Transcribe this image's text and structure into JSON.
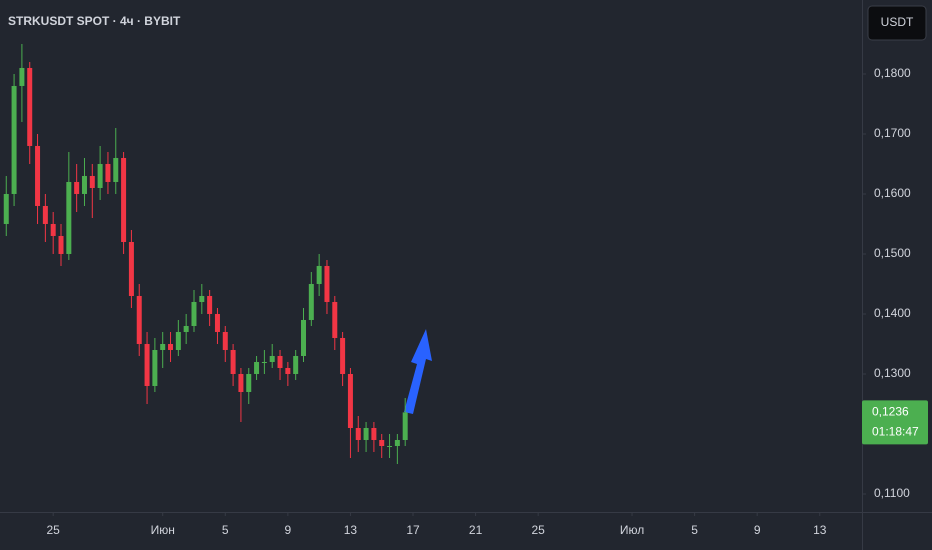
{
  "chart_data": {
    "type": "candlestick",
    "title": "STRKUSDT SPOT · 4ч · BYBIT",
    "currency_button": "USDT",
    "up_color": "#4caf50",
    "down_color": "#f23645",
    "grid": false,
    "x": [
      22,
      22.5,
      23,
      23.5,
      24,
      24.5,
      25,
      25.5,
      26,
      26.5,
      27,
      27.5,
      28,
      28.5,
      29,
      29.5,
      30,
      30.5,
      31,
      31.5,
      32,
      32.5,
      33,
      33.5,
      34,
      34.5,
      35,
      35.5,
      36,
      36.5,
      37,
      37.5,
      38,
      38.5,
      39,
      39.5,
      40,
      40.5,
      41,
      41.5,
      42,
      42.5,
      43,
      43.5,
      44,
      44.5,
      45,
      45.5,
      46,
      46.5,
      47,
      47.5
    ],
    "open": [
      0.155,
      0.16,
      0.178,
      0.181,
      0.168,
      0.158,
      0.155,
      0.153,
      0.15,
      0.162,
      0.16,
      0.163,
      0.161,
      0.165,
      0.162,
      0.166,
      0.152,
      0.143,
      0.135,
      0.128,
      0.134,
      0.135,
      0.134,
      0.137,
      0.138,
      0.142,
      0.143,
      0.14,
      0.137,
      0.134,
      0.13,
      0.127,
      0.13,
      0.132,
      0.132,
      0.133,
      0.131,
      0.13,
      0.133,
      0.139,
      0.145,
      0.148,
      0.142,
      0.136,
      0.13,
      0.121,
      0.119,
      0.121,
      0.119,
      0.118,
      0.118,
      0.119
    ],
    "high": [
      0.163,
      0.18,
      0.185,
      0.182,
      0.17,
      0.16,
      0.157,
      0.155,
      0.167,
      0.165,
      0.166,
      0.165,
      0.168,
      0.167,
      0.171,
      0.167,
      0.154,
      0.145,
      0.137,
      0.136,
      0.137,
      0.137,
      0.139,
      0.14,
      0.144,
      0.145,
      0.144,
      0.141,
      0.138,
      0.135,
      0.131,
      0.131,
      0.133,
      0.134,
      0.135,
      0.134,
      0.132,
      0.134,
      0.141,
      0.147,
      0.15,
      0.149,
      0.143,
      0.137,
      0.131,
      0.123,
      0.122,
      0.122,
      0.12,
      0.12,
      0.12,
      0.126
    ],
    "low": [
      0.153,
      0.158,
      0.172,
      0.165,
      0.155,
      0.152,
      0.15,
      0.148,
      0.149,
      0.157,
      0.158,
      0.156,
      0.159,
      0.16,
      0.16,
      0.15,
      0.141,
      0.133,
      0.125,
      0.127,
      0.131,
      0.132,
      0.133,
      0.135,
      0.137,
      0.14,
      0.138,
      0.135,
      0.132,
      0.128,
      0.122,
      0.125,
      0.129,
      0.13,
      0.131,
      0.129,
      0.128,
      0.129,
      0.132,
      0.138,
      0.143,
      0.14,
      0.134,
      0.128,
      0.116,
      0.117,
      0.117,
      0.117,
      0.116,
      0.116,
      0.115,
      0.118
    ],
    "close": [
      0.16,
      0.178,
      0.181,
      0.168,
      0.158,
      0.155,
      0.153,
      0.15,
      0.162,
      0.16,
      0.163,
      0.161,
      0.165,
      0.162,
      0.166,
      0.152,
      0.143,
      0.135,
      0.128,
      0.134,
      0.135,
      0.134,
      0.137,
      0.138,
      0.142,
      0.143,
      0.14,
      0.137,
      0.134,
      0.13,
      0.127,
      0.13,
      0.132,
      0.132,
      0.133,
      0.131,
      0.13,
      0.133,
      0.139,
      0.145,
      0.148,
      0.142,
      0.136,
      0.13,
      0.121,
      0.119,
      0.121,
      0.119,
      0.118,
      0.118,
      0.119,
      0.1236
    ],
    "xlim": [
      21.6,
      76.7
    ],
    "xticks": [
      {
        "value": 25,
        "label": "25"
      },
      {
        "value": 32,
        "label": "Июн"
      },
      {
        "value": 36,
        "label": "5"
      },
      {
        "value": 40,
        "label": "9"
      },
      {
        "value": 44,
        "label": "13"
      },
      {
        "value": 48,
        "label": "17"
      },
      {
        "value": 52,
        "label": "21"
      },
      {
        "value": 56,
        "label": "25"
      },
      {
        "value": 62,
        "label": "Июл"
      },
      {
        "value": 66,
        "label": "5"
      },
      {
        "value": 70,
        "label": "9"
      },
      {
        "value": 74,
        "label": "13"
      }
    ],
    "ylim": [
      0.107,
      0.19233
    ],
    "yticks": [
      {
        "value": 0.11,
        "label": "0,1100"
      },
      {
        "value": 0.13,
        "label": "0,1300"
      },
      {
        "value": 0.14,
        "label": "0,1400"
      },
      {
        "value": 0.15,
        "label": "0,1500"
      },
      {
        "value": 0.16,
        "label": "0,1600"
      },
      {
        "value": 0.17,
        "label": "0,1700"
      },
      {
        "value": 0.18,
        "label": "0,1800"
      }
    ],
    "last_price": {
      "value": 0.1236,
      "label": "0,1236"
    },
    "countdown": "01:18:47"
  }
}
